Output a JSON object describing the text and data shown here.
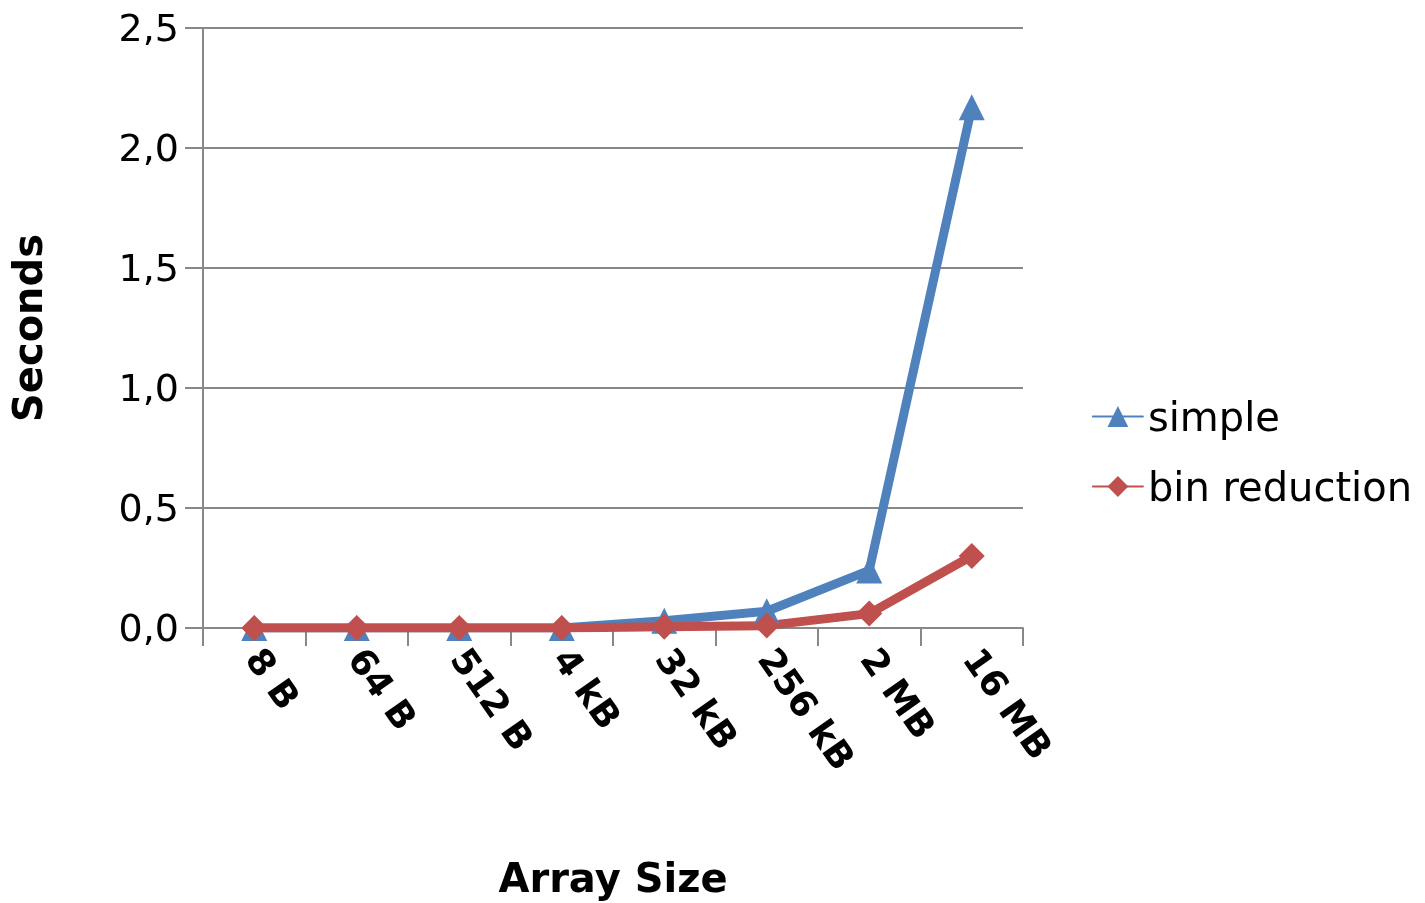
{
  "chart_data": {
    "type": "line",
    "xlabel": "Array Size",
    "ylabel": "Seconds",
    "categories": [
      "8 B",
      "64 B",
      "512 B",
      "4 kB",
      "32 kB",
      "256 kB",
      "2 MB",
      "16 MB"
    ],
    "series": [
      {
        "name": "simple",
        "color": "#4f81bd",
        "marker": "triangle",
        "values": [
          0,
          0,
          0,
          0,
          0.03,
          0.07,
          0.24,
          2.17
        ]
      },
      {
        "name": "bin reduction",
        "color": "#c0504d",
        "marker": "diamond",
        "values": [
          0,
          0,
          0,
          0,
          0.005,
          0.01,
          0.06,
          0.3
        ]
      }
    ],
    "ylim": [
      0,
      2.5
    ],
    "yticks": [
      {
        "value": 0,
        "label": "0,0"
      },
      {
        "value": 0.5,
        "label": "0,5"
      },
      {
        "value": 1,
        "label": "1,0"
      },
      {
        "value": 1.5,
        "label": "1,5"
      },
      {
        "value": 2,
        "label": "2,0"
      },
      {
        "value": 2.5,
        "label": "2,5"
      }
    ],
    "grid": "y",
    "legend": "right",
    "line_style": "solid"
  }
}
